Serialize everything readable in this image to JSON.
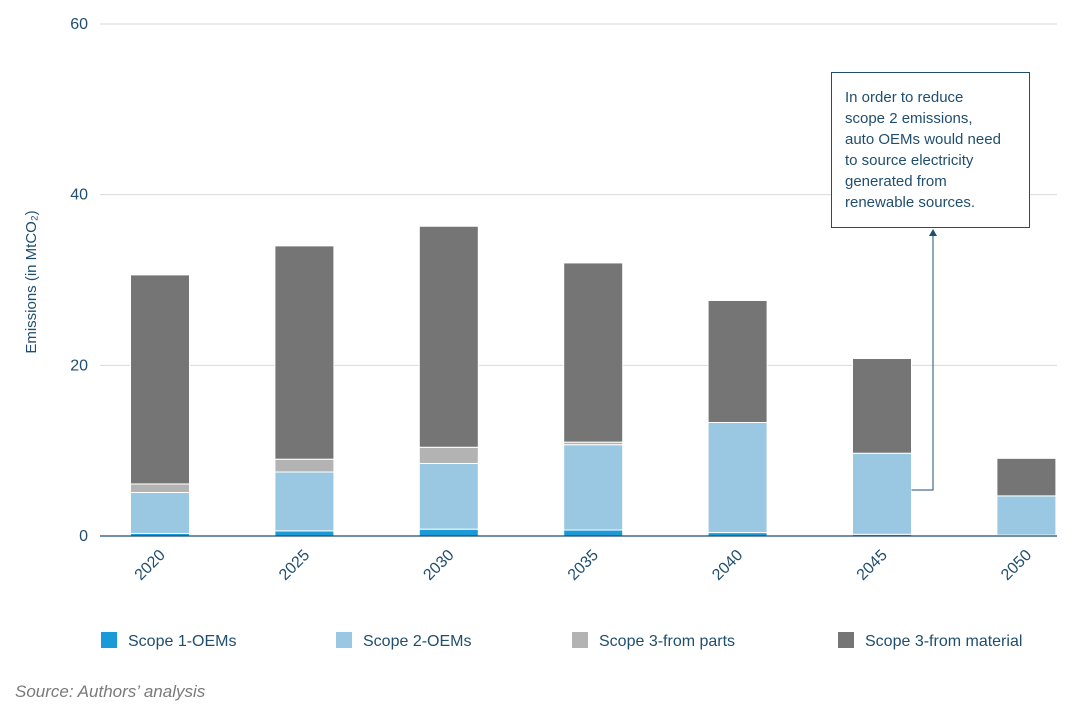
{
  "chart_data": {
    "type": "bar",
    "stacked": true,
    "categories": [
      "2020",
      "2025",
      "2030",
      "2035",
      "2040",
      "2045",
      "2050"
    ],
    "series": [
      {
        "name": "Scope 1-OEMs",
        "color": "#1a9ad6",
        "values": [
          0.3,
          0.6,
          0.8,
          0.7,
          0.4,
          0.2,
          0.1
        ]
      },
      {
        "name": "Scope 2-OEMs",
        "color": "#9ac8e2",
        "values": [
          4.8,
          6.9,
          7.7,
          10.0,
          12.9,
          9.5,
          4.6
        ]
      },
      {
        "name": "Scope 3-from parts",
        "color": "#b3b3b3",
        "values": [
          1.0,
          1.5,
          1.9,
          0.3,
          0.0,
          0.0,
          0.0
        ]
      },
      {
        "name": "Scope 3-from material",
        "color": "#757575",
        "values": [
          24.5,
          25.0,
          25.9,
          21.0,
          14.3,
          11.1,
          4.4
        ]
      }
    ],
    "ylabel": "Emissions (in MtCO₂)",
    "xlabel": "",
    "ylim": [
      0,
      60
    ],
    "yticks": [
      0,
      20,
      40,
      60
    ],
    "grid": true,
    "legend_position": "bottom",
    "annotation": {
      "text_lines": [
        "In order to reduce",
        "scope 2 emissions,",
        "auto OEMs would need",
        "to source electricity",
        "generated from",
        "renewable sources."
      ],
      "points_to_category": "2045"
    }
  },
  "source": "Source: Authors’ analysis",
  "colors": {
    "axis_text": "#1f4e6e",
    "grid": "#d9d9d9",
    "axis_line": "#1f4e6e"
  }
}
